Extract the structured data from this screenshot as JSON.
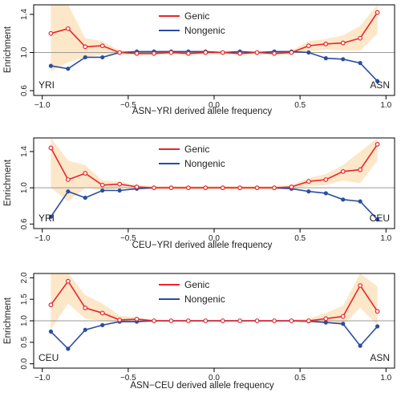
{
  "chart_data": [
    {
      "type": "line",
      "xlabel": "ASN−YRI derived allele frequency",
      "ylabel": "Enrichment",
      "xlim": [
        -1.05,
        1.05
      ],
      "ylim": [
        0.55,
        1.5
      ],
      "xticks": [
        -1.0,
        -0.5,
        0.0,
        0.5,
        1.0
      ],
      "xtick_labels": [
        "−1.0",
        "−0.5",
        "0.0",
        "0.5",
        "1.0"
      ],
      "yticks": [
        0.6,
        1.0,
        1.4
      ],
      "ytick_labels": [
        "0.6",
        "1.0",
        "1.4"
      ],
      "reference_line": 1.0,
      "corner_labels": {
        "left": "YRI",
        "right": "ASN"
      },
      "legend_position": "top-center",
      "x": [
        -0.95,
        -0.85,
        -0.75,
        -0.65,
        -0.55,
        -0.45,
        -0.35,
        -0.25,
        -0.15,
        -0.05,
        0.05,
        0.15,
        0.25,
        0.35,
        0.45,
        0.55,
        0.65,
        0.75,
        0.85,
        0.95
      ],
      "series": [
        {
          "name": "Genic",
          "color": "#e8262c",
          "values": [
            1.2,
            1.25,
            1.06,
            1.07,
            1.0,
            0.99,
            0.99,
            1.0,
            0.99,
            1.0,
            1.0,
            0.99,
            1.0,
            0.99,
            1.0,
            1.07,
            1.09,
            1.1,
            1.15,
            1.42
          ],
          "band_upper": [
            1.5,
            1.5,
            1.15,
            1.12,
            1.02,
            1.01,
            1.01,
            1.01,
            1.01,
            1.01,
            1.01,
            1.01,
            1.01,
            1.01,
            1.02,
            1.12,
            1.14,
            1.18,
            1.28,
            1.5
          ],
          "band_lower": [
            0.8,
            0.9,
            0.95,
            0.98,
            0.98,
            0.97,
            0.97,
            0.98,
            0.97,
            0.98,
            0.98,
            0.97,
            0.98,
            0.97,
            0.98,
            1.01,
            1.03,
            1.02,
            1.02,
            1.2
          ]
        },
        {
          "name": "Nongenic",
          "color": "#2a4da0",
          "values": [
            0.86,
            0.83,
            0.95,
            0.95,
            1.0,
            1.01,
            1.01,
            1.01,
            1.01,
            1.01,
            1.0,
            1.01,
            1.0,
            1.01,
            1.01,
            1.0,
            0.94,
            0.93,
            0.89,
            0.7
          ]
        }
      ]
    },
    {
      "type": "line",
      "xlabel": "CEU−YRI derived allele frequency",
      "ylabel": "Enrichment",
      "xlim": [
        -1.05,
        1.05
      ],
      "ylim": [
        0.55,
        1.55
      ],
      "xticks": [
        -1.0,
        -0.5,
        0.0,
        0.5,
        1.0
      ],
      "xtick_labels": [
        "−1.0",
        "−0.5",
        "0.0",
        "0.5",
        "1.0"
      ],
      "yticks": [
        0.6,
        1.0,
        1.4
      ],
      "ytick_labels": [
        "0.6",
        "1.0",
        "1.4"
      ],
      "reference_line": 1.0,
      "corner_labels": {
        "left": "YRI",
        "right": "CEU"
      },
      "legend_position": "top-center",
      "x": [
        -0.95,
        -0.85,
        -0.75,
        -0.65,
        -0.55,
        -0.45,
        -0.35,
        -0.25,
        -0.15,
        -0.05,
        0.05,
        0.15,
        0.25,
        0.35,
        0.45,
        0.55,
        0.65,
        0.75,
        0.85,
        0.95
      ],
      "series": [
        {
          "name": "Genic",
          "color": "#e8262c",
          "values": [
            1.44,
            1.09,
            1.16,
            1.03,
            1.04,
            1.01,
            1.0,
            1.0,
            1.0,
            1.0,
            1.0,
            1.0,
            1.0,
            1.0,
            1.01,
            1.07,
            1.09,
            1.18,
            1.2,
            1.48
          ],
          "band_upper": [
            1.55,
            1.3,
            1.25,
            1.08,
            1.07,
            1.03,
            1.02,
            1.02,
            1.02,
            1.02,
            1.02,
            1.02,
            1.02,
            1.02,
            1.03,
            1.11,
            1.15,
            1.25,
            1.4,
            1.55
          ],
          "band_lower": [
            1.0,
            0.85,
            1.0,
            0.97,
            1.0,
            0.99,
            0.98,
            0.98,
            0.98,
            0.98,
            0.98,
            0.98,
            0.98,
            0.98,
            0.99,
            1.02,
            1.03,
            1.08,
            1.05,
            1.3
          ]
        },
        {
          "name": "Nongenic",
          "color": "#2a4da0",
          "values": [
            0.68,
            0.96,
            0.89,
            0.97,
            0.97,
            0.99,
            1.0,
            1.0,
            1.0,
            1.0,
            1.0,
            1.0,
            1.0,
            1.0,
            0.99,
            0.96,
            0.94,
            0.87,
            0.85,
            0.65
          ]
        }
      ]
    },
    {
      "type": "line",
      "xlabel": "ASN−CEU derived allele frequency",
      "ylabel": "Enrichment",
      "xlim": [
        -1.05,
        1.05
      ],
      "ylim": [
        -0.1,
        2.1
      ],
      "xticks": [
        -1.0,
        -0.5,
        0.0,
        0.5,
        1.0
      ],
      "xtick_labels": [
        "−1.0",
        "−0.5",
        "0.0",
        "0.5",
        "1.0"
      ],
      "yticks": [
        0.0,
        0.5,
        1.0,
        1.5,
        2.0
      ],
      "ytick_labels": [
        "0.0",
        "0.5",
        "1.0",
        "1.5",
        "2.0"
      ],
      "reference_line": 1.0,
      "corner_labels": {
        "left": "CEU",
        "right": "ASN"
      },
      "legend_position": "top-center",
      "x": [
        -0.95,
        -0.85,
        -0.75,
        -0.65,
        -0.55,
        -0.45,
        -0.35,
        -0.25,
        -0.15,
        -0.05,
        0.05,
        0.15,
        0.25,
        0.35,
        0.45,
        0.55,
        0.65,
        0.75,
        0.85,
        0.95
      ],
      "series": [
        {
          "name": "Genic",
          "color": "#e8262c",
          "values": [
            1.37,
            1.92,
            1.3,
            1.18,
            1.02,
            1.04,
            1.0,
            1.0,
            1.0,
            1.0,
            1.0,
            1.0,
            1.0,
            1.0,
            1.0,
            1.0,
            1.05,
            1.1,
            1.82,
            1.22
          ],
          "band_upper": [
            2.1,
            2.1,
            1.6,
            1.4,
            1.12,
            1.08,
            1.03,
            1.02,
            1.02,
            1.02,
            1.02,
            1.02,
            1.02,
            1.02,
            1.03,
            1.05,
            1.18,
            1.35,
            2.1,
            1.8
          ],
          "band_lower": [
            0.8,
            1.4,
            1.05,
            1.0,
            0.95,
            0.99,
            0.97,
            0.98,
            0.98,
            0.98,
            0.98,
            0.98,
            0.98,
            0.98,
            0.97,
            0.95,
            0.95,
            0.9,
            1.3,
            0.9
          ]
        },
        {
          "name": "Nongenic",
          "color": "#2a4da0",
          "values": [
            0.75,
            0.35,
            0.79,
            0.9,
            0.98,
            0.98,
            1.0,
            1.0,
            1.0,
            1.0,
            1.0,
            1.0,
            1.0,
            1.0,
            1.0,
            0.99,
            0.96,
            0.93,
            0.42,
            0.87
          ]
        }
      ]
    }
  ]
}
